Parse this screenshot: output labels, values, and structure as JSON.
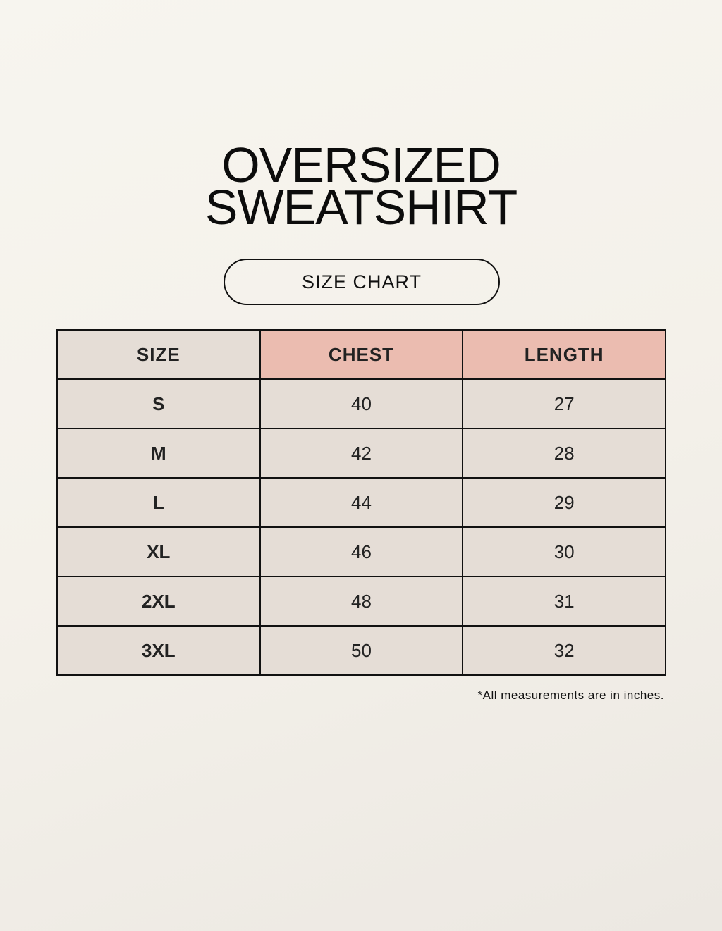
{
  "title": {
    "line1": "OVERSIZED",
    "line2": "SWEATSHIRT"
  },
  "subtitle": "SIZE CHART",
  "table": {
    "header": [
      "SIZE",
      "CHEST",
      "LENGTH"
    ],
    "rows": [
      [
        "S",
        "40",
        "27"
      ],
      [
        "M",
        "42",
        "28"
      ],
      [
        "L",
        "44",
        "29"
      ],
      [
        "XL",
        "46",
        "30"
      ],
      [
        "2XL",
        "48",
        "31"
      ],
      [
        "3XL",
        "50",
        "32"
      ]
    ]
  },
  "note": "*All measurements are in inches."
}
